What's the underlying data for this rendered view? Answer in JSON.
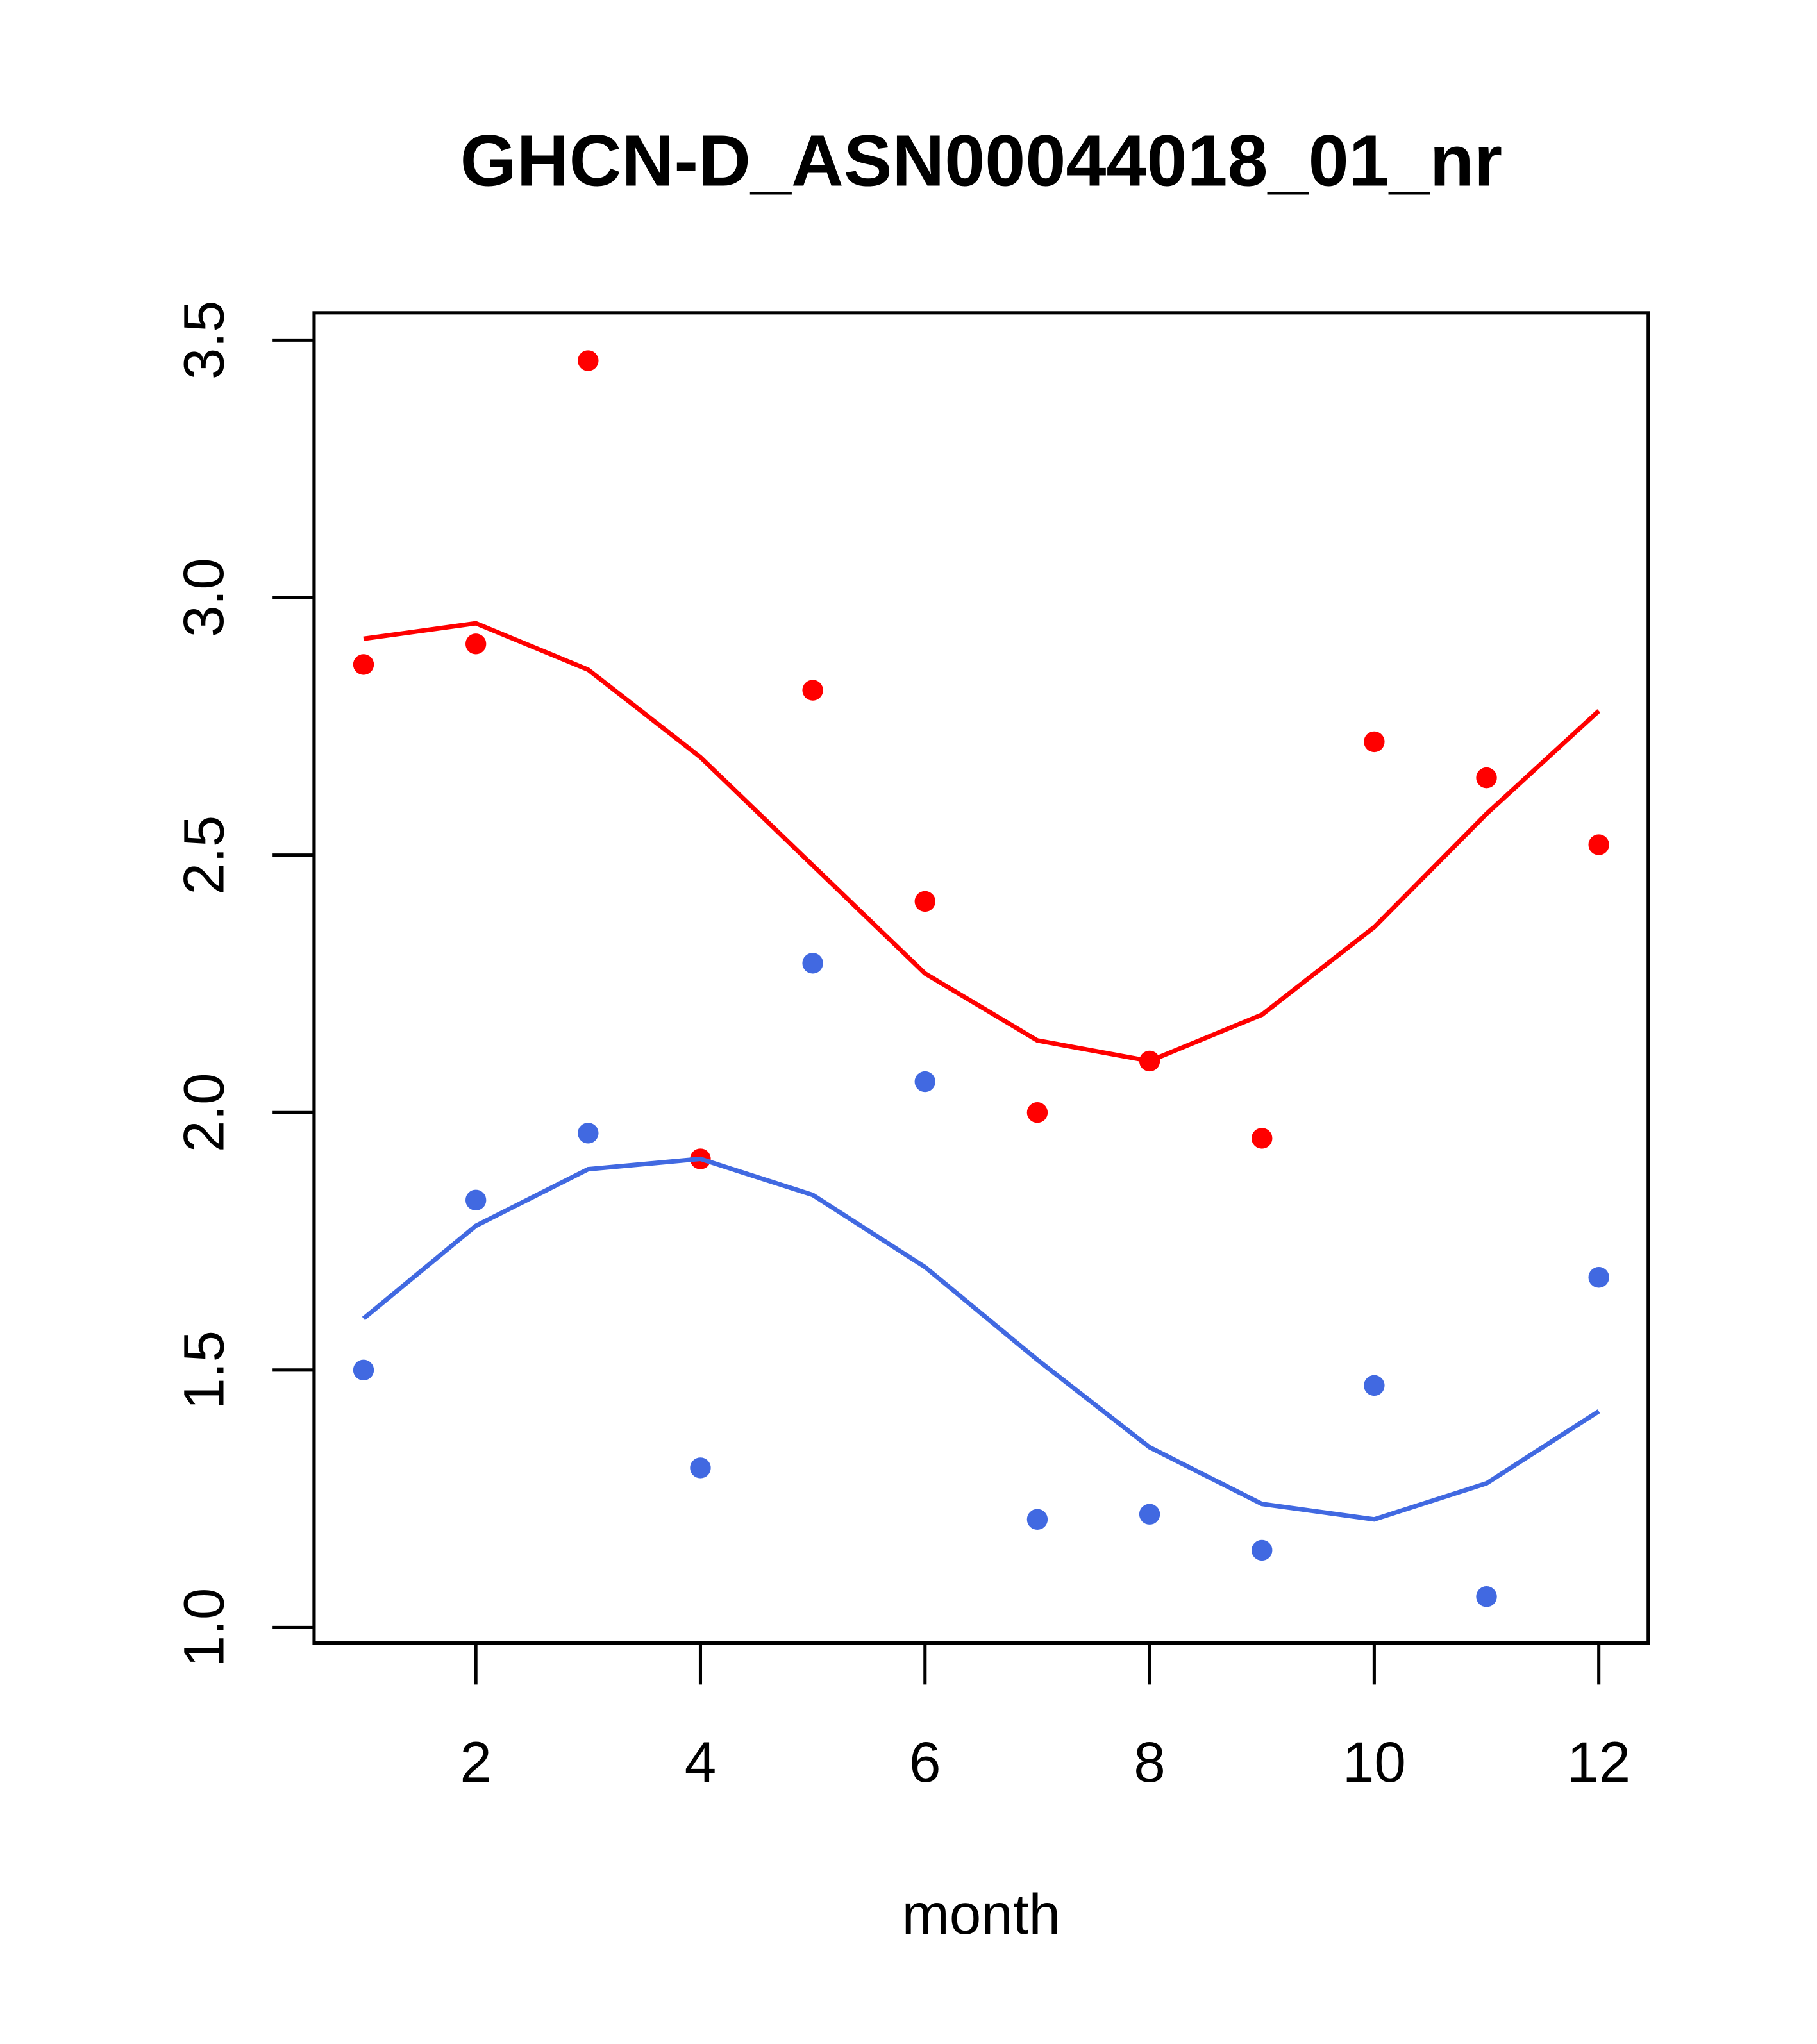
{
  "chart_data": {
    "type": "scatter",
    "title": "GHCN-D_ASN00044018_01_nr",
    "xlabel": "month",
    "ylabel": "",
    "xlim": [
      0.56,
      12.44
    ],
    "ylim": [
      0.97,
      3.553
    ],
    "x_ticks": [
      2,
      4,
      6,
      8,
      10,
      12
    ],
    "x_tick_labels": [
      "2",
      "4",
      "6",
      "8",
      "10",
      "12"
    ],
    "y_ticks": [
      1.0,
      1.5,
      2.0,
      2.5,
      3.0,
      3.5
    ],
    "y_tick_labels": [
      "1.0",
      "1.5",
      "2.0",
      "2.5",
      "3.0",
      "3.5"
    ],
    "grid": false,
    "x": [
      1,
      2,
      3,
      4,
      5,
      6,
      7,
      8,
      9,
      10,
      11,
      12
    ],
    "series": [
      {
        "name": "red points",
        "kind": "points",
        "color": "#FF0000",
        "values": [
          2.87,
          2.91,
          3.46,
          1.91,
          2.82,
          2.41,
          2.0,
          2.1,
          1.95,
          2.72,
          2.65,
          2.52
        ]
      },
      {
        "name": "red fit",
        "kind": "line",
        "color": "#FF0000",
        "values": [
          2.92,
          2.95,
          2.86,
          2.69,
          2.48,
          2.27,
          2.14,
          2.1,
          2.19,
          2.36,
          2.58,
          2.78
        ]
      },
      {
        "name": "blue points",
        "kind": "points",
        "color": "#4169E1",
        "values": [
          1.5,
          1.83,
          1.96,
          1.31,
          2.29,
          2.06,
          1.21,
          1.22,
          1.15,
          1.47,
          1.06,
          1.68
        ]
      },
      {
        "name": "blue fit",
        "kind": "line",
        "color": "#4169E1",
        "values": [
          1.6,
          1.78,
          1.89,
          1.91,
          1.84,
          1.7,
          1.52,
          1.35,
          1.24,
          1.21,
          1.28,
          1.42
        ]
      }
    ]
  }
}
